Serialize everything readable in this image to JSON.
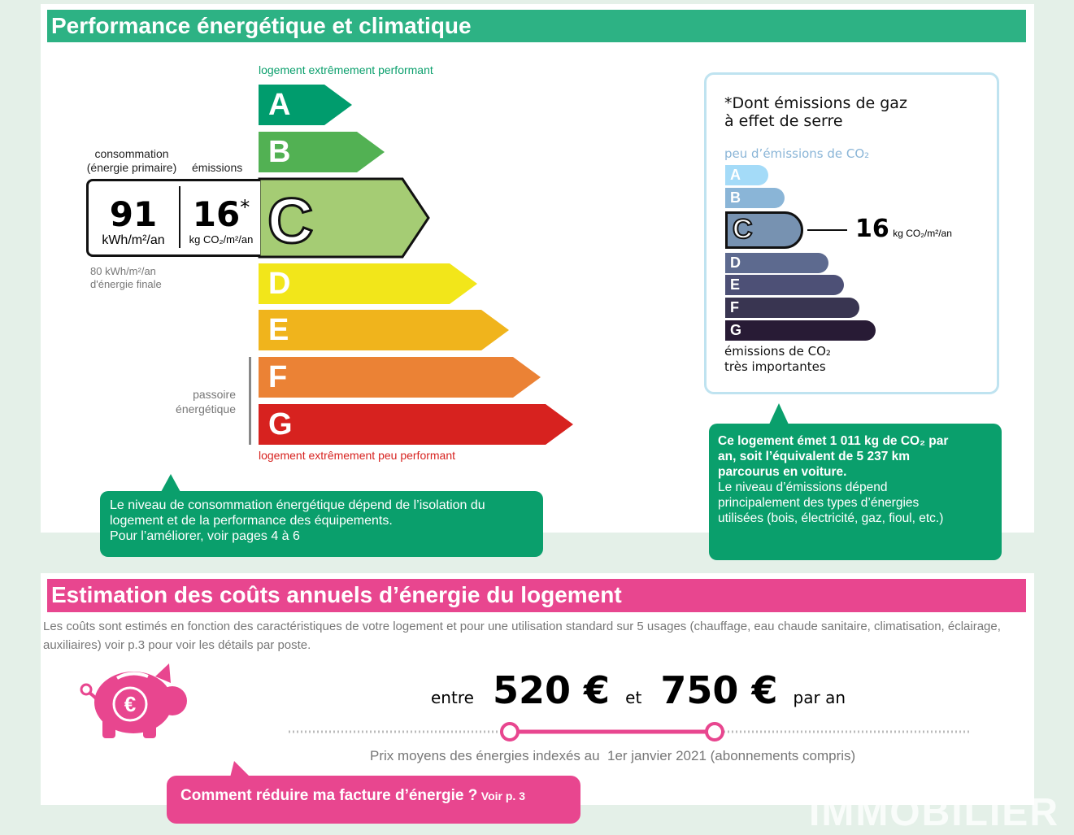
{
  "performance": {
    "title": "Performance énergétique et climatique",
    "top_label": "logement extrêmement performant",
    "bottom_label": "logement extrêmement peu performant",
    "classes": [
      "A",
      "B",
      "C",
      "D",
      "E",
      "F",
      "G"
    ],
    "class_colors": [
      "#009c6d",
      "#52b153",
      "#a5cc74",
      "#f2e61a",
      "#f0b41c",
      "#eb8235",
      "#d7221f"
    ],
    "current_class": "C",
    "consumption_label_1": "consommation",
    "consumption_label_2": "(énergie primaire)",
    "emissions_label": "émissions",
    "consumption_value": "91",
    "consumption_unit": "kWh/m²/an",
    "emissions_value": "16",
    "emissions_asterisk": "*",
    "emissions_unit": "kg CO₂/m²/an",
    "final_energy_1": "80 kWh/m²/an",
    "final_energy_2": "d'énergie finale",
    "passoire_1": "passoire",
    "passoire_2": "énergétique",
    "callout": [
      "Le niveau de consommation énergétique dépend de l’isolation du",
      "logement et de la performance des équipements.",
      "Pour l’améliorer, voir pages 4 à 6"
    ]
  },
  "ges": {
    "title_1": "*Dont émissions de gaz",
    "title_2": "à effet de serre",
    "top_label": "peu d’émissions de CO₂",
    "classes": [
      "A",
      "B",
      "C",
      "D",
      "E",
      "F",
      "G"
    ],
    "class_colors": [
      "#a4dbf8",
      "#8ab5d7",
      "#7792b1",
      "#5d6a8f",
      "#4d5076",
      "#393551",
      "#281b35"
    ],
    "current_class": "C",
    "value": "16",
    "unit": "kg CO₂/m²/an",
    "bottom_label_1": "émissions de CO₂",
    "bottom_label_2": "très importantes",
    "callout": [
      "Ce logement émet 1 011 kg de CO₂ par",
      "an, soit l’équivalent de 5 237 km",
      "parcourus en voiture.",
      "Le niveau d’émissions dépend",
      "principalement des types d’énergies",
      "utilisées (bois, électricité, gaz, fioul, etc.)"
    ]
  },
  "costs": {
    "title": "Estimation des coûts annuels d’énergie du logement",
    "description": "Les coûts sont estimés en fonction des caractéristiques de votre logement et pour une utilisation standard sur 5 usages (chauffage, eau chaude sanitaire, climatisation, éclairage, auxiliaires) voir p.3 pour voir les détails par poste.",
    "entre": "entre",
    "min": "520 €",
    "et": "et",
    "max": "750 €",
    "par_an": "par an",
    "prices_note": "Prix moyens des énergies indexés au  1er janvier 2021 (abonnements compris)",
    "callout": "Comment réduire ma facture d’énergie ?",
    "callout_link": "Voir p. 3"
  },
  "watermark": "IMMOBILIER",
  "colors": {
    "green": "#2db284",
    "pink": "#e8468f"
  }
}
